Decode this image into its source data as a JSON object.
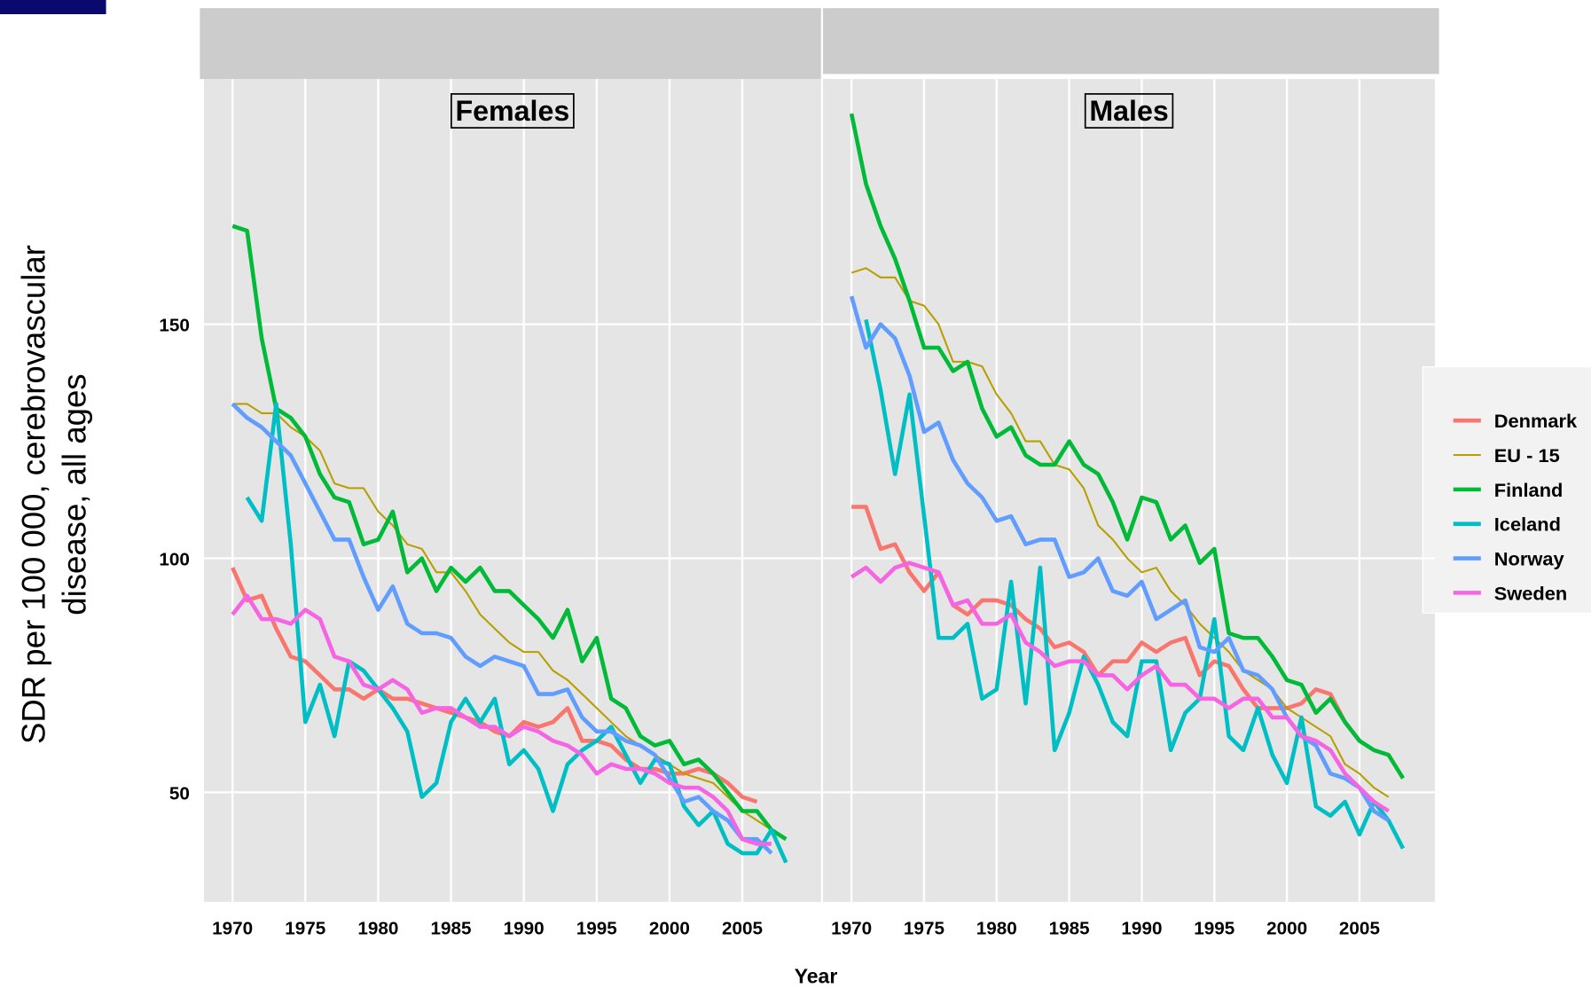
{
  "chart_data": [
    {
      "type": "line",
      "title": "Females",
      "y_label": [
        "SDR per 100 000, cerebrovascular",
        "disease, all ages"
      ],
      "x_label": "Year",
      "x": [
        1970,
        1971,
        1972,
        1973,
        1974,
        1975,
        1976,
        1977,
        1978,
        1979,
        1980,
        1981,
        1982,
        1983,
        1984,
        1985,
        1986,
        1987,
        1988,
        1989,
        1990,
        1991,
        1992,
        1993,
        1994,
        1995,
        1996,
        1997,
        1998,
        1999,
        2000,
        2001,
        2002,
        2003,
        2004,
        2005,
        2006,
        2007,
        2008
      ],
      "xlim": [
        1968.04,
        2010.4
      ],
      "ylim": [
        26.6,
        202.4
      ],
      "xticks": [
        1970,
        1975,
        1980,
        1985,
        1990,
        1995,
        2000,
        2005
      ],
      "yticks": [
        50,
        100,
        150
      ],
      "grid": true,
      "series": [
        {
          "name": "Denmark",
          "color": "#F8766D",
          "linewidth": 4,
          "values": [
            98,
            91,
            92,
            85,
            79,
            78,
            75,
            72,
            72,
            70,
            72,
            70,
            70,
            69,
            68,
            67,
            66,
            65,
            63,
            62,
            65,
            64,
            65,
            68,
            61,
            61,
            60,
            57,
            55,
            55,
            54,
            54,
            55,
            54,
            52,
            49,
            48,
            null,
            null
          ]
        },
        {
          "name": "EU - 15",
          "color": "#B79F00",
          "linewidth": 1.8,
          "values": [
            133,
            133,
            131,
            131,
            128,
            126,
            123,
            116,
            115,
            115,
            110,
            107,
            103,
            102,
            97,
            97,
            93,
            88,
            85,
            82,
            80,
            80,
            76,
            74,
            71,
            68,
            65,
            62,
            60,
            58,
            56,
            54,
            53,
            52,
            49,
            46,
            44,
            42,
            null
          ]
        },
        {
          "name": "Finland",
          "color": "#00BA38",
          "linewidth": 4,
          "values": [
            171,
            170,
            147,
            132,
            130,
            126,
            118,
            113,
            112,
            103,
            104,
            110,
            97,
            100,
            93,
            98,
            95,
            98,
            93,
            93,
            90,
            87,
            83,
            89,
            78,
            83,
            70,
            68,
            62,
            60,
            61,
            56,
            57,
            54,
            50,
            46,
            46,
            42,
            40
          ]
        },
        {
          "name": "Iceland",
          "color": "#00BFC4",
          "linewidth": 4,
          "values": [
            null,
            113,
            108,
            133,
            103,
            65,
            73,
            62,
            78,
            76,
            72,
            68,
            63,
            49,
            52,
            65,
            70,
            65,
            70,
            56,
            59,
            55,
            46,
            56,
            59,
            61,
            64,
            58,
            52,
            57,
            56,
            47,
            43,
            46,
            39,
            37,
            37,
            42,
            35
          ]
        },
        {
          "name": "Norway",
          "color": "#619CFF",
          "linewidth": 4,
          "values": [
            133,
            130,
            128,
            125,
            122,
            116,
            110,
            104,
            104,
            96,
            89,
            94,
            86,
            84,
            84,
            83,
            79,
            77,
            79,
            78,
            77,
            71,
            71,
            72,
            66,
            63,
            63,
            61,
            60,
            58,
            53,
            48,
            49,
            46,
            44,
            40,
            40,
            37,
            null
          ]
        },
        {
          "name": "Sweden",
          "color": "#F564E3",
          "linewidth": 4,
          "values": [
            88,
            92,
            87,
            87,
            86,
            89,
            87,
            79,
            78,
            73,
            72,
            74,
            72,
            67,
            68,
            68,
            66,
            64,
            64,
            62,
            64,
            63,
            61,
            60,
            58,
            54,
            56,
            55,
            55,
            54,
            52,
            51,
            51,
            49,
            46,
            40,
            39,
            39,
            null
          ]
        }
      ]
    },
    {
      "type": "line",
      "title": "Males",
      "x": [
        1970,
        1971,
        1972,
        1973,
        1974,
        1975,
        1976,
        1977,
        1978,
        1979,
        1980,
        1981,
        1982,
        1983,
        1984,
        1985,
        1986,
        1987,
        1988,
        1989,
        1990,
        1991,
        1992,
        1993,
        1994,
        1995,
        1996,
        1997,
        1998,
        1999,
        2000,
        2001,
        2002,
        2003,
        2004,
        2005,
        2006,
        2007,
        2008
      ],
      "xlim": [
        1968.04,
        2010.2
      ],
      "ylim": [
        26.6,
        202.4
      ],
      "xticks": [
        1970,
        1975,
        1980,
        1985,
        1990,
        1995,
        2000,
        2005
      ],
      "grid": true,
      "series": [
        {
          "color": "#F8766D",
          "linewidth": 4,
          "values": [
            111,
            111,
            102,
            103,
            97,
            93,
            97,
            90,
            88,
            91,
            91,
            90,
            87,
            85,
            81,
            82,
            80,
            75,
            78,
            78,
            82,
            80,
            82,
            83,
            75,
            78,
            77,
            72,
            68,
            68,
            68,
            69,
            72,
            71,
            65,
            61,
            null,
            null,
            null
          ]
        },
        {
          "color": "#B79F00",
          "linewidth": 1.8,
          "values": [
            161,
            162,
            160,
            160,
            155,
            154,
            150,
            142,
            142,
            141,
            135,
            131,
            125,
            125,
            120,
            119,
            115,
            107,
            104,
            100,
            97,
            98,
            93,
            90,
            86,
            83,
            80,
            76,
            74,
            72,
            68,
            66,
            64,
            62,
            56,
            54,
            51,
            49,
            null
          ]
        },
        {
          "color": "#00BA38",
          "linewidth": 4,
          "values": [
            195,
            180,
            171,
            164,
            155,
            145,
            145,
            140,
            142,
            132,
            126,
            128,
            122,
            120,
            120,
            125,
            120,
            118,
            112,
            104,
            113,
            112,
            104,
            107,
            99,
            102,
            84,
            83,
            83,
            79,
            74,
            73,
            67,
            70,
            65,
            61,
            59,
            58,
            53
          ]
        },
        {
          "color": "#00BFC4",
          "linewidth": 4,
          "values": [
            null,
            151,
            136,
            118,
            135,
            109,
            83,
            83,
            86,
            70,
            72,
            95,
            69,
            98,
            59,
            67,
            79,
            73,
            65,
            62,
            78,
            78,
            59,
            67,
            70,
            87,
            62,
            59,
            68,
            58,
            52,
            66,
            47,
            45,
            48,
            41,
            48,
            44,
            38
          ]
        },
        {
          "color": "#619CFF",
          "linewidth": 4,
          "values": [
            156,
            145,
            150,
            147,
            139,
            127,
            129,
            121,
            116,
            113,
            108,
            109,
            103,
            104,
            104,
            96,
            97,
            100,
            93,
            92,
            95,
            87,
            89,
            91,
            81,
            80,
            83,
            76,
            75,
            72,
            66,
            62,
            60,
            54,
            53,
            51,
            46,
            44,
            null
          ]
        },
        {
          "color": "#F564E3",
          "linewidth": 4,
          "values": [
            96,
            98,
            95,
            98,
            99,
            98,
            97,
            90,
            91,
            86,
            86,
            88,
            82,
            80,
            77,
            78,
            78,
            75,
            75,
            72,
            75,
            77,
            73,
            73,
            70,
            70,
            68,
            70,
            70,
            66,
            66,
            62,
            61,
            59,
            54,
            51,
            48,
            46,
            null
          ]
        }
      ]
    }
  ]
}
